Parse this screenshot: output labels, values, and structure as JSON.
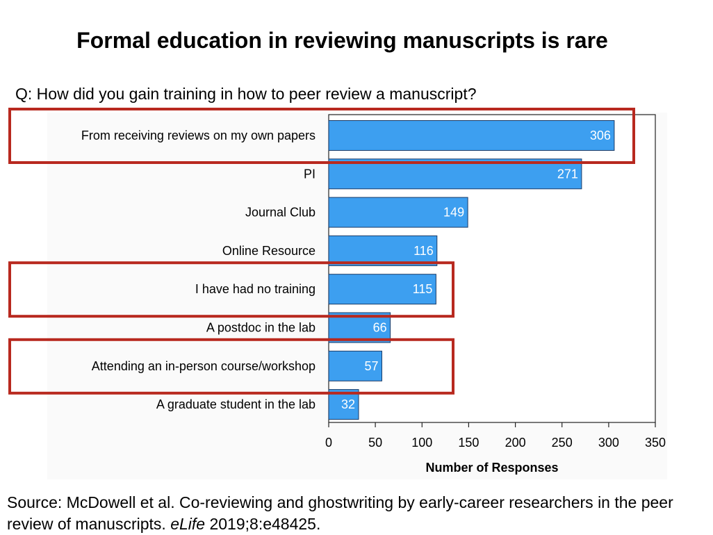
{
  "slide": {
    "title": "Formal education in reviewing manuscripts is rare",
    "question": "Q: How did you gain training in how to peer review a manuscript?",
    "source_prefix": "Source: McDowell et al. Co-reviewing and ghostwriting by early-career researchers in the peer review of manuscripts. ",
    "source_journal": "eLife",
    "source_suffix": " 2019;8:e48425."
  },
  "colors": {
    "bar_fill": "#3d9ff0",
    "bar_stroke": "#1a3a66",
    "highlight_box": "#b8291f",
    "value_label": "#ffffff"
  },
  "chart_data": {
    "type": "bar",
    "orientation": "horizontal",
    "categories": [
      "From receiving reviews on my own papers",
      "PI",
      "Journal Club",
      "Online Resource",
      "I have had no training",
      "A postdoc in the lab",
      "Attending an in-person course/workshop",
      "A graduate student in the lab"
    ],
    "values": [
      306,
      271,
      149,
      116,
      115,
      66,
      57,
      32
    ],
    "xlabel": "Number of Responses",
    "ylabel": "",
    "xlim": [
      0,
      350
    ],
    "xticks": [
      0,
      50,
      100,
      150,
      200,
      250,
      300,
      350
    ],
    "grid": false,
    "highlighted_categories": [
      "From receiving reviews on my own papers",
      "I have had no training",
      "Attending an in-person course/workshop"
    ]
  }
}
